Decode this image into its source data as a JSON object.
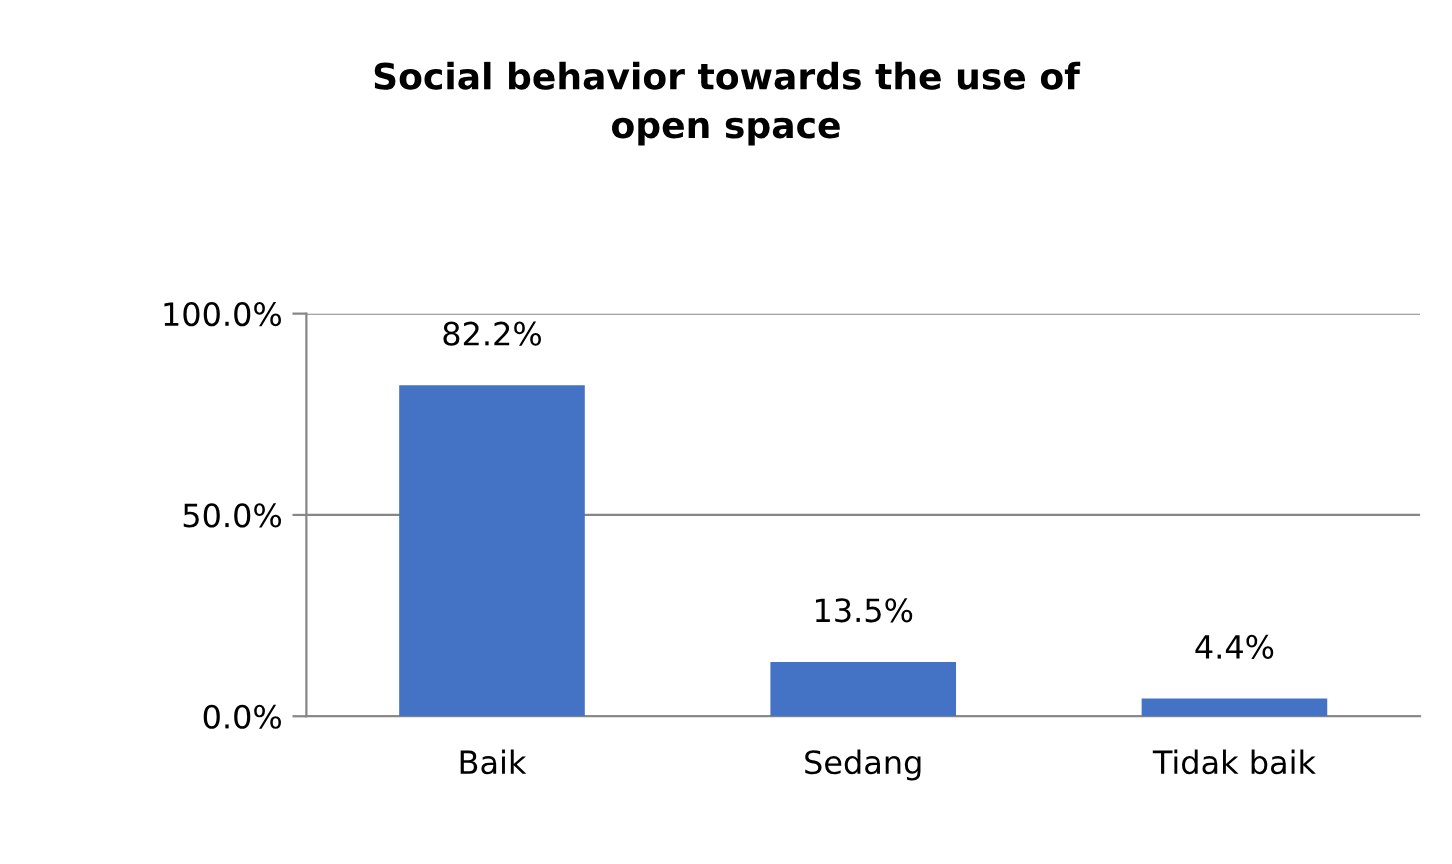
{
  "chart_data": {
    "type": "bar",
    "title": "Social behavior towards the use of\nopen space",
    "categories": [
      "Baik",
      "Sedang",
      "Tidak baik"
    ],
    "values": [
      82.2,
      13.5,
      4.4
    ],
    "value_labels": [
      "82.2%",
      "13.5%",
      "4.4%"
    ],
    "color": "#4472c4",
    "ylim": [
      0,
      100
    ],
    "yticks": [
      {
        "value": 0,
        "label": "0.0%"
      },
      {
        "value": 50,
        "label": "50.0%"
      },
      {
        "value": 100,
        "label": "100.0%"
      }
    ],
    "grid": "y",
    "legend": false
  }
}
